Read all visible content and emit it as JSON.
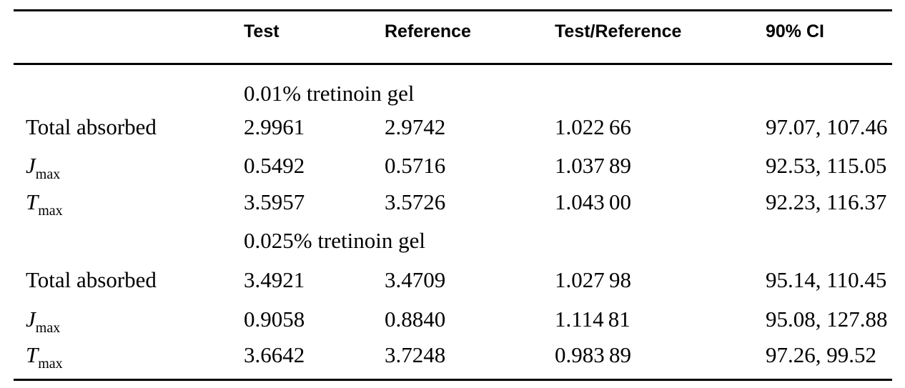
{
  "table": {
    "header": {
      "test": "Test",
      "reference": "Reference",
      "ratio": "Test/Reference",
      "ci": "90% CI"
    },
    "sections": [
      {
        "title": "0.01% tretinoin gel",
        "rows": [
          {
            "label": "Total absorbed",
            "label_sub": "",
            "test": "2.9961",
            "reference": "2.9742",
            "ratio": "1.022 66",
            "ci": "97.07, 107.46"
          },
          {
            "label": "J",
            "label_sub": "max",
            "test": "0.5492",
            "reference": "0.5716",
            "ratio": "1.037 89",
            "ci": "92.53, 115.05"
          },
          {
            "label": "T",
            "label_sub": "max",
            "test": "3.5957",
            "reference": "3.5726",
            "ratio": "1.043 00",
            "ci": "92.23, 116.37"
          }
        ]
      },
      {
        "title": "0.025% tretinoin gel",
        "rows": [
          {
            "label": "Total absorbed",
            "label_sub": "",
            "test": "3.4921",
            "reference": "3.4709",
            "ratio": "1.027 98",
            "ci": "95.14, 110.45"
          },
          {
            "label": "J",
            "label_sub": "max",
            "test": "0.9058",
            "reference": "0.8840",
            "ratio": "1.114 81",
            "ci": "95.08, 127.88"
          },
          {
            "label": "T",
            "label_sub": "max",
            "test": "3.6642",
            "reference": "3.7248",
            "ratio": "0.983 89",
            "ci": "97.26, 99.52"
          }
        ]
      }
    ],
    "text_color": "#000000",
    "rule_color": "#000000",
    "background_color": "#ffffff"
  }
}
